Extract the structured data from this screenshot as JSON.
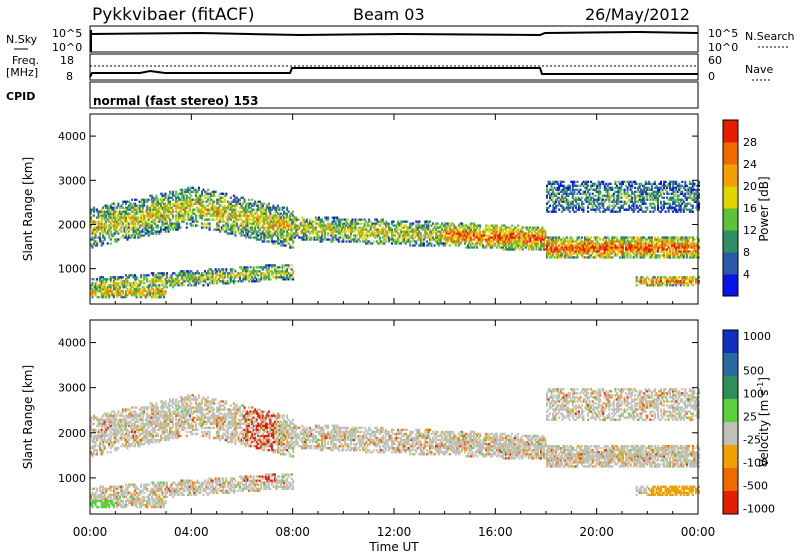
{
  "header": {
    "station": "Pykkvibaer (fitACF)",
    "beam": "Beam 03",
    "date": "26/May/2012"
  },
  "top_panels": {
    "nsky_label": "N.Sky",
    "nsky_ticks": [
      "10^5",
      "10^0"
    ],
    "nsearch_label": "N.Search",
    "nsearch_ticks": [
      "10^5",
      "10^0"
    ],
    "freq_label": "Freq.",
    "freq_unit": "[MHz]",
    "freq_ticks": [
      "18",
      "8"
    ],
    "nave_label": "Nave",
    "nave_ticks": [
      "60",
      "0"
    ],
    "cpid_label": "CPID",
    "cpid_text": "normal (fast stereo) 153"
  },
  "chart_data": [
    {
      "type": "heatmap",
      "name": "power",
      "ylabel": "Slant Range [km]",
      "xlabel": "",
      "xlim": [
        0,
        24
      ],
      "ylim": [
        200,
        4500
      ],
      "yticks": [
        "1000",
        "2000",
        "3000",
        "4000"
      ],
      "xticks": [
        "00:00",
        "04:00",
        "08:00",
        "12:00",
        "16:00",
        "20:00",
        "00:00"
      ],
      "colorbar": {
        "label": "Power [dB]",
        "ticks": [
          "4",
          "8",
          "12",
          "16",
          "20",
          "24",
          "28"
        ],
        "colors": [
          "#0a14e6",
          "#2a5aa8",
          "#2e8f63",
          "#5cc23a",
          "#e0d600",
          "#f5a000",
          "#f06a00",
          "#e61e00"
        ]
      }
    },
    {
      "type": "heatmap",
      "name": "velocity",
      "ylabel": "Slant Range [km]",
      "xlabel": "Time UT",
      "xlim": [
        0,
        24
      ],
      "ylim": [
        200,
        4500
      ],
      "yticks": [
        "1000",
        "2000",
        "3000",
        "4000"
      ],
      "xticks": [
        "00:00",
        "04:00",
        "08:00",
        "12:00",
        "16:00",
        "20:00",
        "00:00"
      ],
      "colorbar": {
        "label": "Velocity [m s",
        "label_sup": "-1",
        "label_end": "]",
        "ticks": [
          "1000",
          "500",
          "100",
          "25",
          "-25",
          "-100",
          "-500",
          "-1000"
        ],
        "colors": [
          "#1030c0",
          "#2a6aa0",
          "#2f8f5a",
          "#5ccf3a",
          "#c0c0b8",
          "#f0a000",
          "#f06a00",
          "#e61e00"
        ]
      }
    }
  ]
}
